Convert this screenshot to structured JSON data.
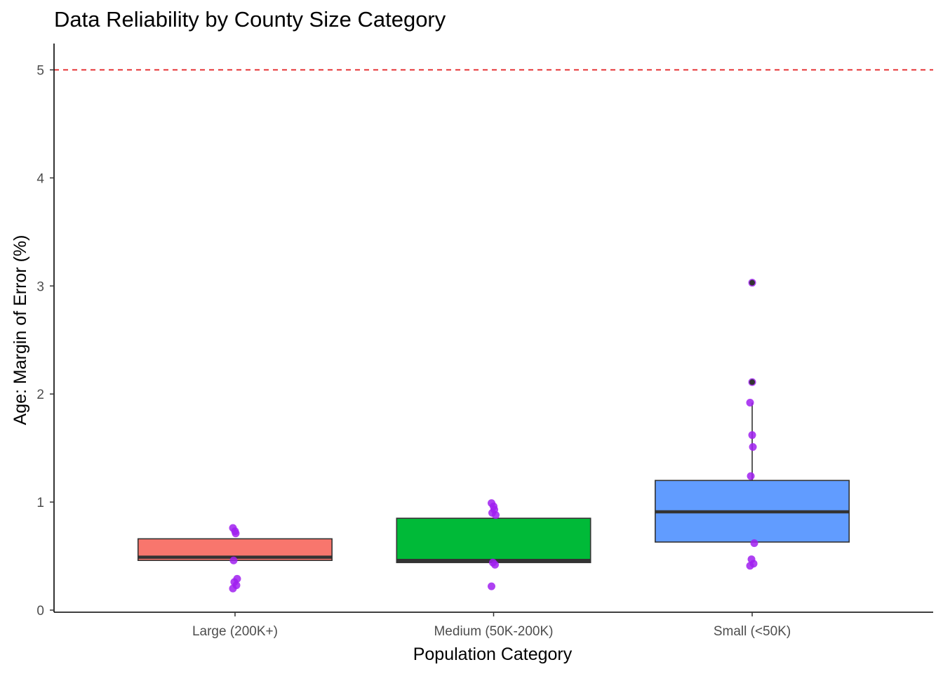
{
  "chart_data": {
    "type": "box",
    "title": "Data Reliability by County Size Category",
    "xlabel": "Population Category",
    "ylabel": "Age: Margin of Error (%)",
    "ylim": [
      -0.02,
      5.22
    ],
    "yticks": [
      0,
      1,
      2,
      3,
      4,
      5
    ],
    "grid": false,
    "legend": "none",
    "reference_line": {
      "y": 5,
      "style": "dashed",
      "color": "#e31a1c"
    },
    "point_color": "#a020f0",
    "outlier_color": "#333333",
    "categories": [
      "Large (200K+)",
      "Medium (50K-200K)",
      "Small (<50K)"
    ],
    "boxes": [
      {
        "category": "Large (200K+)",
        "color": "#f8766d",
        "whisker_low": 0.46,
        "q1": 0.46,
        "median": 0.49,
        "q3": 0.66,
        "whisker_high": 0.66
      },
      {
        "category": "Medium (50K-200K)",
        "color": "#00ba38",
        "whisker_low": 0.44,
        "q1": 0.44,
        "median": 0.46,
        "q3": 0.85,
        "whisker_high": 0.85
      },
      {
        "category": "Small (<50K)",
        "color": "#619cff",
        "whisker_low": 0.63,
        "q1": 0.63,
        "median": 0.91,
        "q3": 1.2,
        "whisker_high": 1.92
      }
    ],
    "points": [
      {
        "category": "Large (200K+)",
        "values": [
          0.2,
          0.23,
          0.26,
          0.29,
          0.46,
          0.71,
          0.73,
          0.76
        ]
      },
      {
        "category": "Medium (50K-200K)",
        "values": [
          0.22,
          0.42,
          0.44,
          0.88,
          0.9,
          0.93,
          0.96,
          0.99
        ]
      },
      {
        "category": "Small (<50K)",
        "values": [
          0.41,
          0.43,
          0.47,
          0.62,
          1.24,
          1.51,
          1.62,
          1.92
        ]
      }
    ],
    "outliers": [
      {
        "category": "Small (<50K)",
        "values": [
          2.11,
          3.03
        ]
      }
    ]
  }
}
